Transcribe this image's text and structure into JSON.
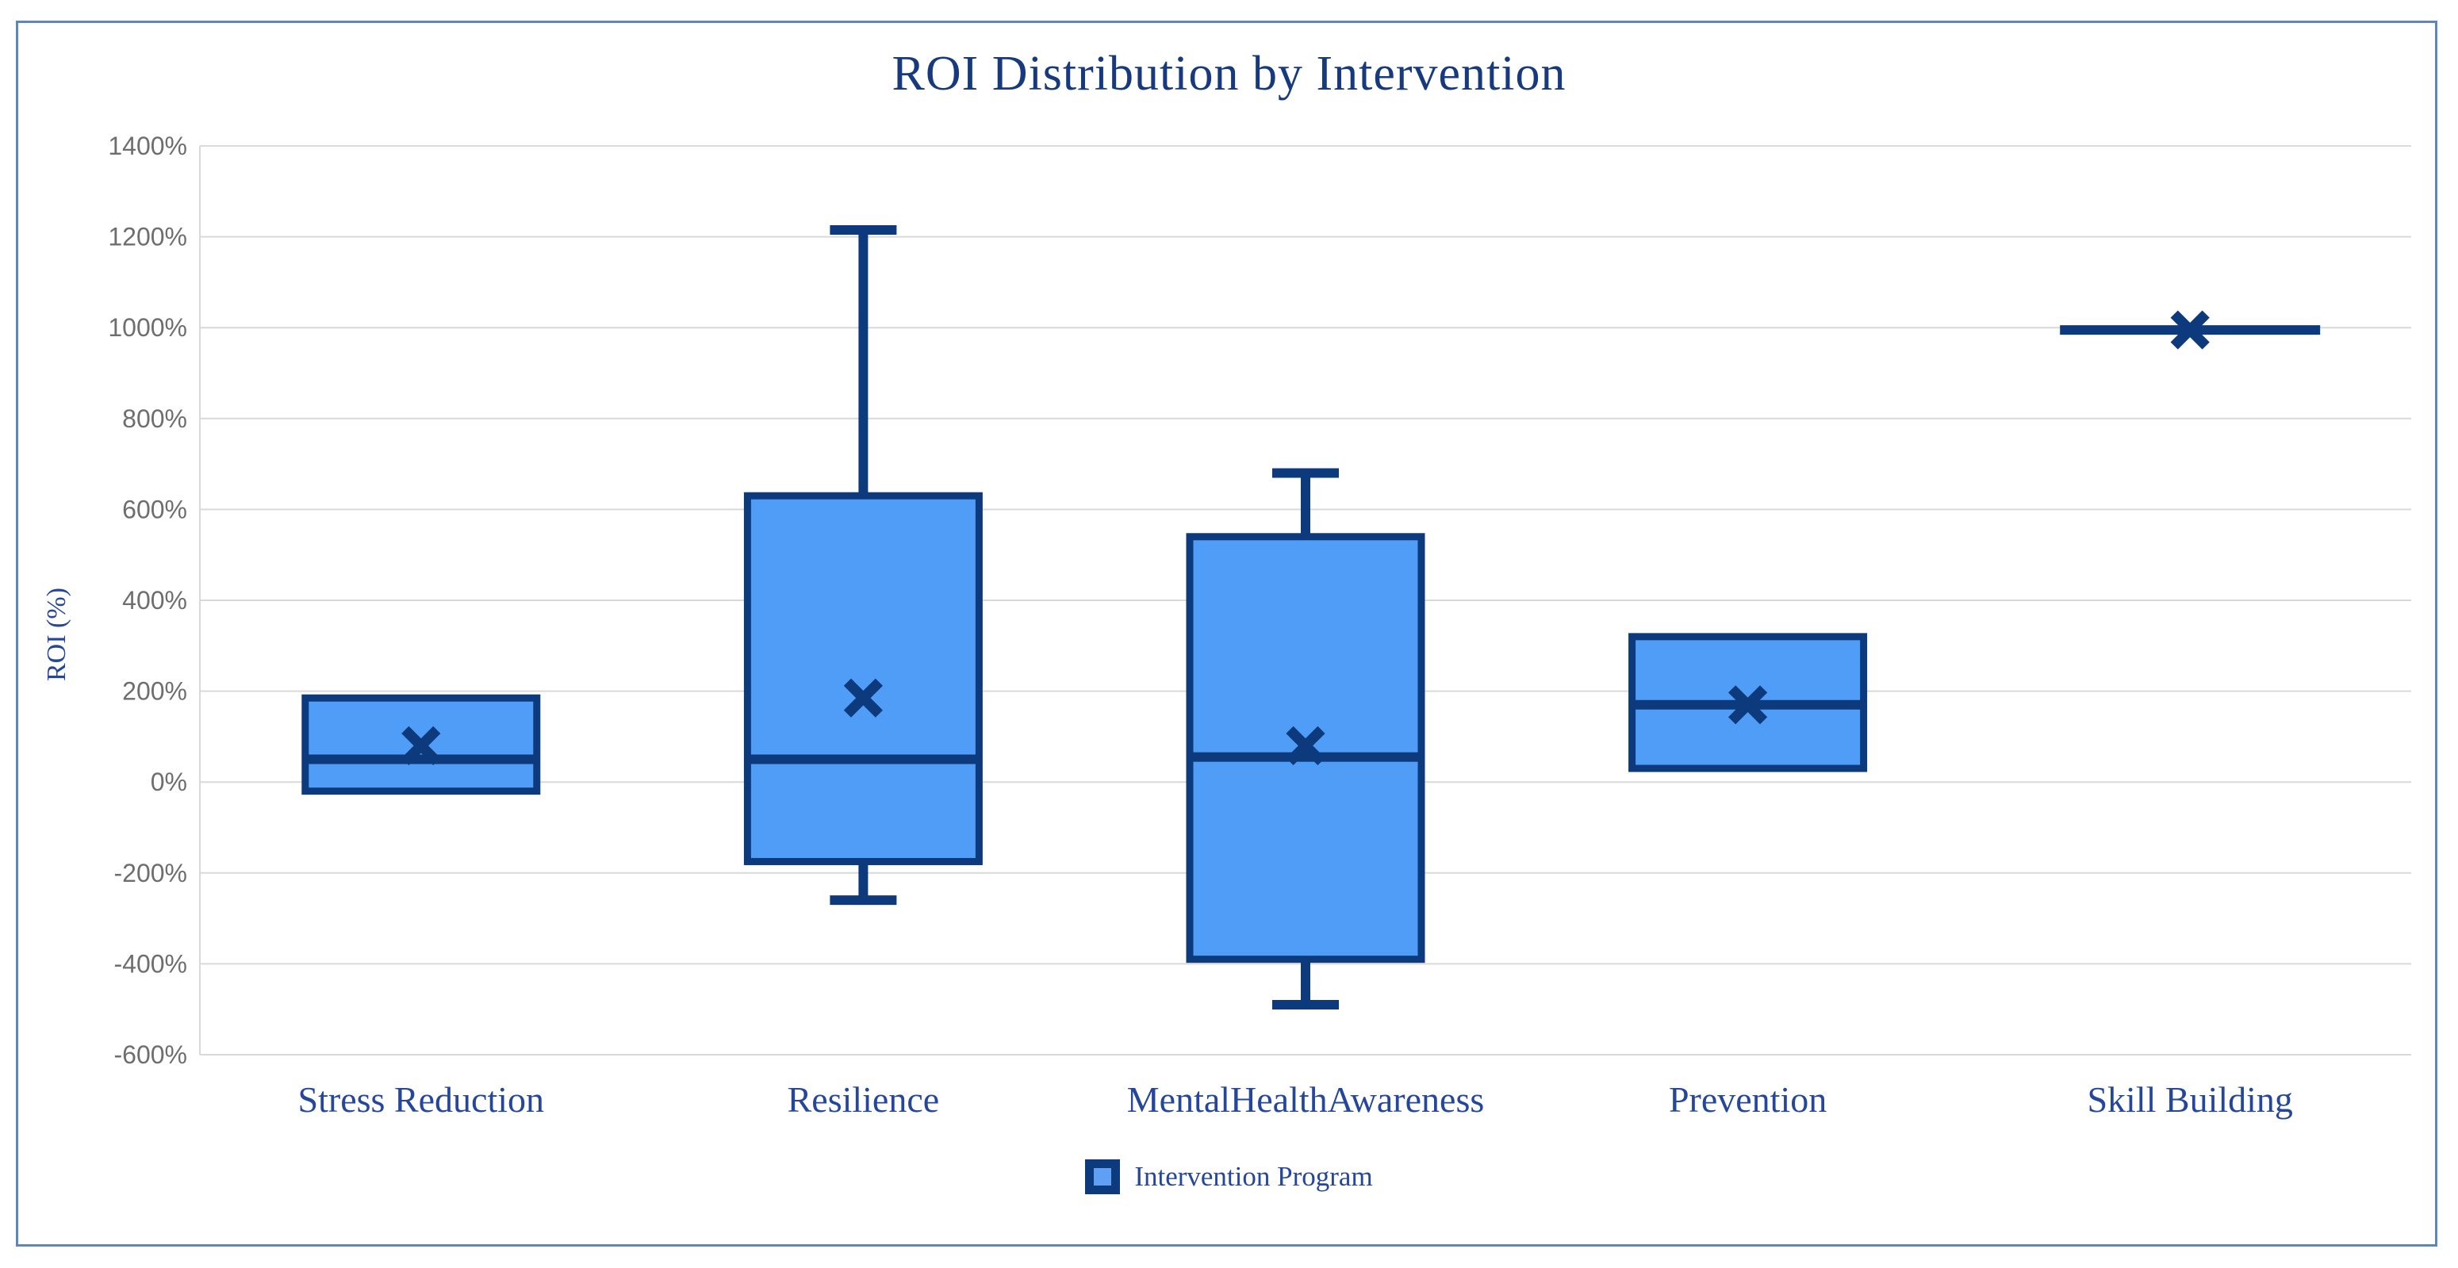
{
  "window": {
    "background_color": "#ffffff",
    "frame_border_color": "#5f86bb"
  },
  "chart_data": {
    "type": "boxplot",
    "title": "ROI Distribution by Intervention",
    "ylabel": "ROI (%)",
    "ylim": [
      -600,
      1400
    ],
    "ytick_step": 200,
    "yticks": [
      "1400%",
      "1200%",
      "1000%",
      "800%",
      "600%",
      "400%",
      "200%",
      "0%",
      "-200%",
      "-400%",
      "-600%"
    ],
    "grid": true,
    "categories": [
      "Stress Reduction",
      "Resilience",
      "MentalHealthAwareness",
      "Prevention",
      "Skill Building"
    ],
    "legend": {
      "label": "Intervention Program",
      "position": "bottom"
    },
    "series": [
      {
        "name": "Intervention Program",
        "boxes": [
          {
            "category": "Stress Reduction",
            "min": -20,
            "q1": -20,
            "median": 50,
            "q3": 185,
            "max": 185,
            "mean": 80
          },
          {
            "category": "Resilience",
            "min": -260,
            "q1": -175,
            "median": 50,
            "q3": 630,
            "max": 1215,
            "mean": 185
          },
          {
            "category": "MentalHealthAwareness",
            "min": -490,
            "q1": -390,
            "median": 55,
            "q3": 540,
            "max": 680,
            "mean": 80
          },
          {
            "category": "Prevention",
            "min": 30,
            "q1": 30,
            "median": 170,
            "q3": 320,
            "max": 320,
            "mean": 170
          },
          {
            "category": "Skill Building",
            "min": 995,
            "q1": 995,
            "median": 995,
            "q3": 995,
            "max": 995,
            "mean": 995
          }
        ]
      }
    ],
    "colors": {
      "box_fill": "#4f9df7",
      "box_border": "#0d3a7c",
      "mean_marker": "#0d3a7c",
      "grid": "#d9d9d9",
      "axis_line": "#d9d9d9",
      "tick_label": "#6e6e6e",
      "title_text": "#173a7e",
      "label_text": "#24479b"
    }
  }
}
